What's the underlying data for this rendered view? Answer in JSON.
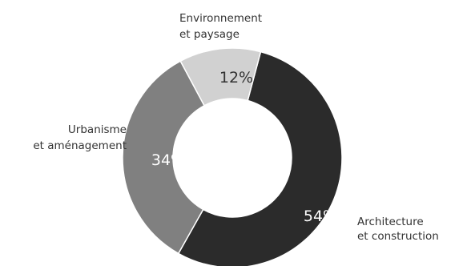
{
  "chart_data": {
    "type": "pie",
    "variant": "donut",
    "title": "",
    "series": [
      {
        "categories": [
          "Architecture et construction",
          "Urbanisme et aménagement",
          "Environnement et paysage"
        ],
        "values": [
          54,
          34,
          12
        ]
      }
    ],
    "slices": [
      {
        "label_lines": [
          "Architecture",
          "et construction"
        ],
        "value": 54,
        "value_label": "54%",
        "color": "#2b2b2b",
        "label_color": "#ffffff"
      },
      {
        "label_lines": [
          "Urbanisme",
          "et aménagement"
        ],
        "value": 34,
        "value_label": "34%",
        "color": "#808080",
        "label_color": "#ffffff"
      },
      {
        "label_lines": [
          "Environnement",
          "et paysage"
        ],
        "value": 12,
        "value_label": "12%",
        "color": "#d1d1d1",
        "label_color": "#333333"
      }
    ],
    "legend": "none"
  }
}
